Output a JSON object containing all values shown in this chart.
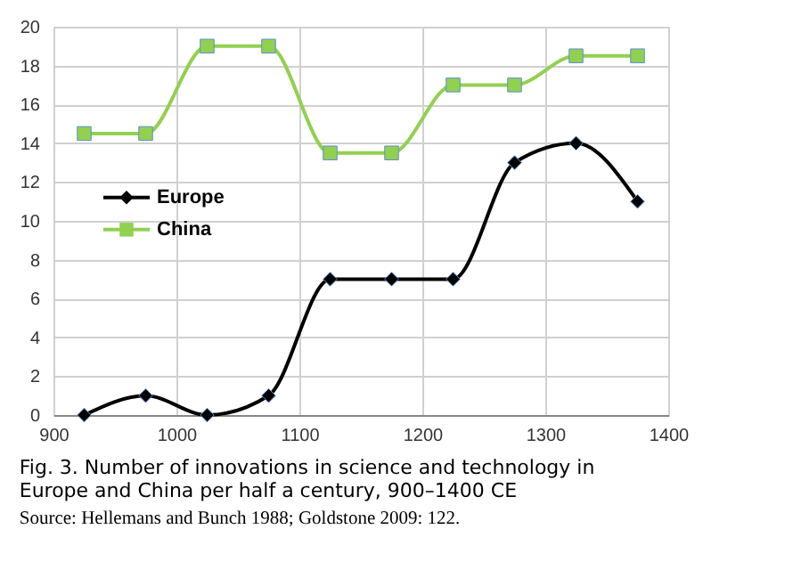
{
  "chart_data": {
    "type": "line",
    "title": "Fig. 3. Number of innovations in science and technology in Europe and China per half a century, 900–1400 CE",
    "annotations": [
      "Source: Hellemans and Bunch 1988; Goldstone 2009: 122."
    ],
    "x": [
      925,
      975,
      1025,
      1075,
      1125,
      1175,
      1225,
      1275,
      1325,
      1375
    ],
    "series": [
      {
        "name": "Europe",
        "color": "#000000",
        "marker": "diamond",
        "values": [
          0,
          1,
          0,
          1,
          7,
          7,
          7,
          13,
          14,
          11
        ]
      },
      {
        "name": "China",
        "color": "#92d050",
        "marker": "square",
        "values": [
          14.5,
          14.5,
          19,
          19,
          13.5,
          13.5,
          17,
          17,
          18.5,
          18.5
        ]
      }
    ],
    "xlim": [
      900,
      1400
    ],
    "xticks": [
      900,
      1000,
      1100,
      1200,
      1300,
      1400
    ],
    "ylim": [
      0,
      20
    ],
    "yticks": [
      0,
      2,
      4,
      6,
      8,
      10,
      12,
      14,
      16,
      18,
      20
    ],
    "grid": true,
    "legend": "left",
    "line_style": "solid"
  }
}
